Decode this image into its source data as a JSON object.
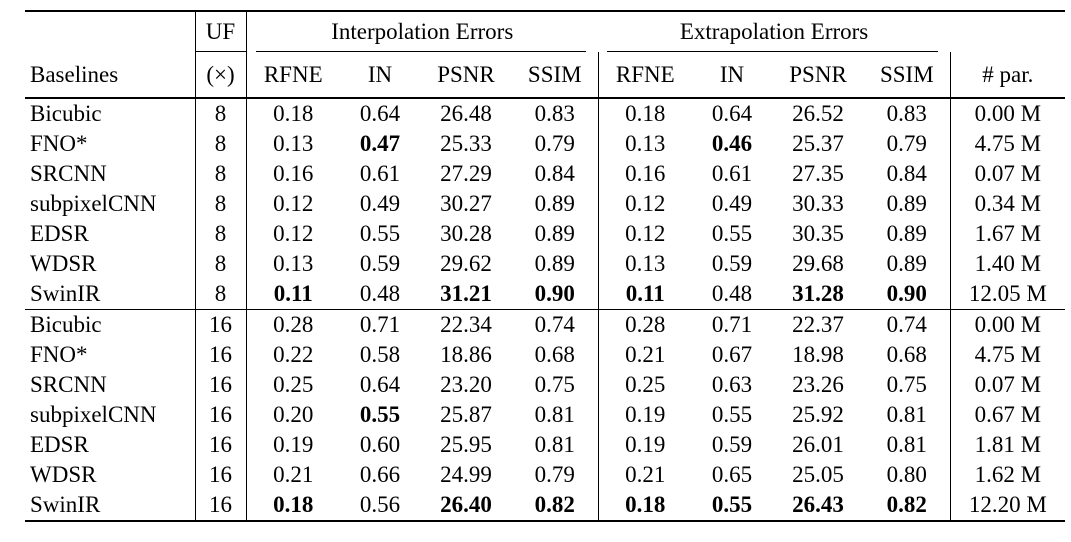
{
  "colors": {
    "background": "#ffffff",
    "text": "#000000",
    "rule": "#000000"
  },
  "table": {
    "uf_label": "UF",
    "uf_times": "(×)",
    "baselines_label": "Baselines",
    "interp_label": "Interpolation Errors",
    "extrap_label": "Extrapolation Errors",
    "params_label": "# par.",
    "metric_headers": [
      "RFNE",
      "IN",
      "PSNR",
      "SSIM"
    ],
    "metric_keys": [
      "rfne",
      "in",
      "psnr",
      "ssim"
    ],
    "rows": [
      {
        "name": "Bicubic",
        "uf": "8",
        "interp": [
          "0.18",
          "0.64",
          "26.48",
          "0.83"
        ],
        "interp_bold": [
          false,
          false,
          false,
          false
        ],
        "extrap": [
          "0.18",
          "0.64",
          "26.52",
          "0.83"
        ],
        "extrap_bold": [
          false,
          false,
          false,
          false
        ],
        "params": "0.00 M",
        "sep": false
      },
      {
        "name": "FNO*",
        "uf": "8",
        "interp": [
          "0.13",
          "0.47",
          "25.33",
          "0.79"
        ],
        "interp_bold": [
          false,
          true,
          false,
          false
        ],
        "extrap": [
          "0.13",
          "0.46",
          "25.37",
          "0.79"
        ],
        "extrap_bold": [
          false,
          true,
          false,
          false
        ],
        "params": "4.75 M",
        "sep": false
      },
      {
        "name": "SRCNN",
        "uf": "8",
        "interp": [
          "0.16",
          "0.61",
          "27.29",
          "0.84"
        ],
        "interp_bold": [
          false,
          false,
          false,
          false
        ],
        "extrap": [
          "0.16",
          "0.61",
          "27.35",
          "0.84"
        ],
        "extrap_bold": [
          false,
          false,
          false,
          false
        ],
        "params": "0.07 M",
        "sep": false
      },
      {
        "name": "subpixelCNN",
        "uf": "8",
        "interp": [
          "0.12",
          "0.49",
          "30.27",
          "0.89"
        ],
        "interp_bold": [
          false,
          false,
          false,
          false
        ],
        "extrap": [
          "0.12",
          "0.49",
          "30.33",
          "0.89"
        ],
        "extrap_bold": [
          false,
          false,
          false,
          false
        ],
        "params": "0.34 M",
        "sep": false
      },
      {
        "name": "EDSR",
        "uf": "8",
        "interp": [
          "0.12",
          "0.55",
          "30.28",
          "0.89"
        ],
        "interp_bold": [
          false,
          false,
          false,
          false
        ],
        "extrap": [
          "0.12",
          "0.55",
          "30.35",
          "0.89"
        ],
        "extrap_bold": [
          false,
          false,
          false,
          false
        ],
        "params": "1.67 M",
        "sep": false
      },
      {
        "name": "WDSR",
        "uf": "8",
        "interp": [
          "0.13",
          "0.59",
          "29.62",
          "0.89"
        ],
        "interp_bold": [
          false,
          false,
          false,
          false
        ],
        "extrap": [
          "0.13",
          "0.59",
          "29.68",
          "0.89"
        ],
        "extrap_bold": [
          false,
          false,
          false,
          false
        ],
        "params": "1.40 M",
        "sep": false
      },
      {
        "name": "SwinIR",
        "uf": "8",
        "interp": [
          "0.11",
          "0.48",
          "31.21",
          "0.90"
        ],
        "interp_bold": [
          true,
          false,
          true,
          true
        ],
        "extrap": [
          "0.11",
          "0.48",
          "31.28",
          "0.90"
        ],
        "extrap_bold": [
          true,
          false,
          true,
          true
        ],
        "params": "12.05 M",
        "sep": false
      },
      {
        "name": "Bicubic",
        "uf": "16",
        "interp": [
          "0.28",
          "0.71",
          "22.34",
          "0.74"
        ],
        "interp_bold": [
          false,
          false,
          false,
          false
        ],
        "extrap": [
          "0.28",
          "0.71",
          "22.37",
          "0.74"
        ],
        "extrap_bold": [
          false,
          false,
          false,
          false
        ],
        "params": "0.00 M",
        "sep": true
      },
      {
        "name": "FNO*",
        "uf": "16",
        "interp": [
          "0.22",
          "0.58",
          "18.86",
          "0.68"
        ],
        "interp_bold": [
          false,
          false,
          false,
          false
        ],
        "extrap": [
          "0.21",
          "0.67",
          "18.98",
          "0.68"
        ],
        "extrap_bold": [
          false,
          false,
          false,
          false
        ],
        "params": "4.75 M",
        "sep": false
      },
      {
        "name": "SRCNN",
        "uf": "16",
        "interp": [
          "0.25",
          "0.64",
          "23.20",
          "0.75"
        ],
        "interp_bold": [
          false,
          false,
          false,
          false
        ],
        "extrap": [
          "0.25",
          "0.63",
          "23.26",
          "0.75"
        ],
        "extrap_bold": [
          false,
          false,
          false,
          false
        ],
        "params": "0.07 M",
        "sep": false
      },
      {
        "name": "subpixelCNN",
        "uf": "16",
        "interp": [
          "0.20",
          "0.55",
          "25.87",
          "0.81"
        ],
        "interp_bold": [
          false,
          true,
          false,
          false
        ],
        "extrap": [
          "0.19",
          "0.55",
          "25.92",
          "0.81"
        ],
        "extrap_bold": [
          false,
          false,
          false,
          false
        ],
        "params": "0.67 M",
        "sep": false
      },
      {
        "name": "EDSR",
        "uf": "16",
        "interp": [
          "0.19",
          "0.60",
          "25.95",
          "0.81"
        ],
        "interp_bold": [
          false,
          false,
          false,
          false
        ],
        "extrap": [
          "0.19",
          "0.59",
          "26.01",
          "0.81"
        ],
        "extrap_bold": [
          false,
          false,
          false,
          false
        ],
        "params": "1.81 M",
        "sep": false
      },
      {
        "name": "WDSR",
        "uf": "16",
        "interp": [
          "0.21",
          "0.66",
          "24.99",
          "0.79"
        ],
        "interp_bold": [
          false,
          false,
          false,
          false
        ],
        "extrap": [
          "0.21",
          "0.65",
          "25.05",
          "0.80"
        ],
        "extrap_bold": [
          false,
          false,
          false,
          false
        ],
        "params": "1.62 M",
        "sep": false
      },
      {
        "name": "SwinIR",
        "uf": "16",
        "interp": [
          "0.18",
          "0.56",
          "26.40",
          "0.82"
        ],
        "interp_bold": [
          true,
          false,
          true,
          true
        ],
        "extrap": [
          "0.18",
          "0.55",
          "26.43",
          "0.82"
        ],
        "extrap_bold": [
          true,
          true,
          true,
          true
        ],
        "params": "12.20 M",
        "sep": false
      }
    ]
  }
}
